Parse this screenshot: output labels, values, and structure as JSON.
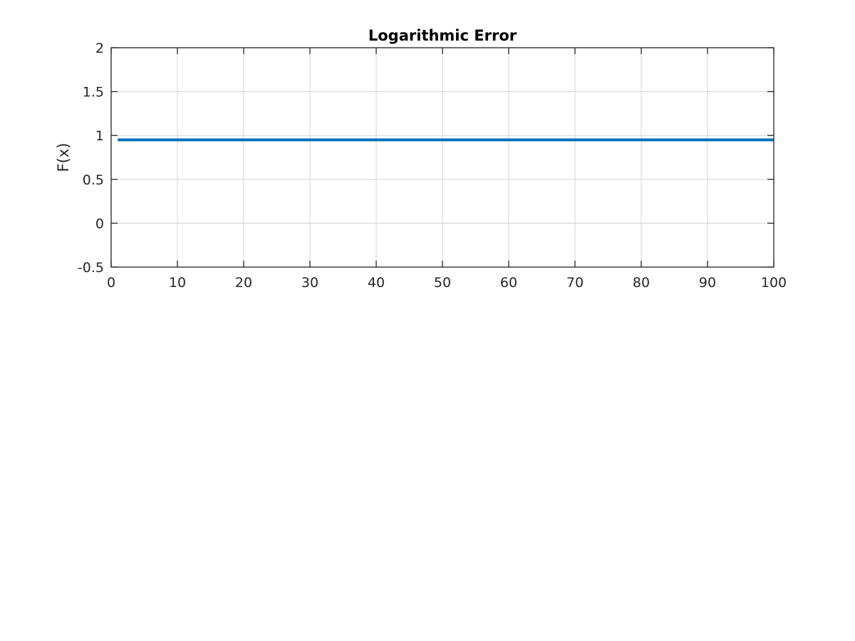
{
  "chart_data": {
    "type": "line",
    "title": "Logarithmic Error",
    "xlabel": "",
    "ylabel": "F(x)",
    "xlim": [
      0,
      100
    ],
    "ylim": [
      -0.5,
      2
    ],
    "xticks": [
      0,
      10,
      20,
      30,
      40,
      50,
      60,
      70,
      80,
      90,
      100
    ],
    "xtick_labels": [
      "0",
      "10",
      "20",
      "30",
      "40",
      "50",
      "60",
      "70",
      "80",
      "90",
      "100"
    ],
    "yticks": [
      -0.5,
      0,
      0.5,
      1,
      1.5,
      2
    ],
    "ytick_labels": [
      "-0.5",
      "0",
      "0.5",
      "1",
      "1.5",
      "2"
    ],
    "grid": true,
    "series": [
      {
        "color": "#0072BD",
        "x": [
          1,
          100
        ],
        "y": [
          0.95,
          0.95
        ]
      }
    ]
  }
}
